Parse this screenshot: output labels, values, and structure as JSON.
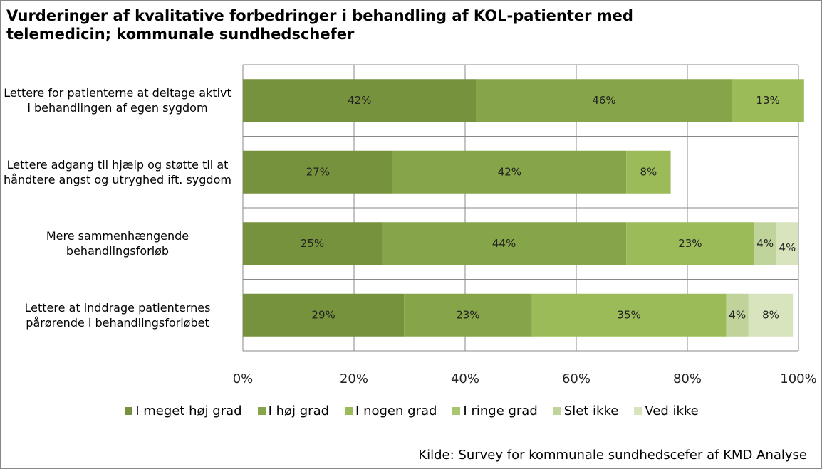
{
  "chart_data": {
    "type": "stacked_barh",
    "title": "Vurderinger af kvalitative forbedringer i behandling af KOL-patienter med telemedicin; kommunale sundhedschefer",
    "categories": [
      "Lettere for patienterne at deltage aktivt i behandlingen af egen sygdom",
      "Lettere adgang til hjælp og støtte til at håndtere angst og utryghed ift. sygdom",
      "Mere sammenhængende behandlingsforløb",
      "Lettere at inddrage patienternes pårørende i behandlingsforløbet"
    ],
    "series": [
      {
        "name": "I meget høj grad",
        "color": "#76923c",
        "values": [
          42,
          27,
          25,
          29
        ],
        "value_labels": [
          "42%",
          "27%",
          "25%",
          "29%"
        ]
      },
      {
        "name": "I høj grad",
        "color": "#86a548",
        "values": [
          46,
          42,
          44,
          23
        ],
        "value_labels": [
          "46%",
          "42%",
          "44%",
          "23%"
        ]
      },
      {
        "name": "I nogen grad",
        "color": "#9bbb59",
        "values": [
          13,
          8,
          23,
          35
        ],
        "value_labels": [
          "13%",
          "8%",
          "23%",
          "35%"
        ]
      },
      {
        "name": "I ringe grad",
        "color": "#a9c56f",
        "values": [
          null,
          null,
          null,
          null
        ],
        "value_labels": [
          null,
          null,
          null,
          null
        ]
      },
      {
        "name": "Slet ikke",
        "color": "#bfd39a",
        "values": [
          null,
          null,
          4,
          4
        ],
        "value_labels": [
          null,
          null,
          "4%",
          "4%"
        ]
      },
      {
        "name": "Ved ikke",
        "color": "#d7e4bd",
        "values": [
          null,
          null,
          4,
          8
        ],
        "value_labels": [
          null,
          null,
          "4%",
          "8%"
        ]
      }
    ],
    "xlim": [
      0,
      100
    ],
    "xticks": [
      {
        "value": 0,
        "label": "0%"
      },
      {
        "value": 20,
        "label": "20%"
      },
      {
        "value": 40,
        "label": "40%"
      },
      {
        "value": 60,
        "label": "60%"
      },
      {
        "value": 80,
        "label": "80%"
      },
      {
        "value": 100,
        "label": "100%"
      }
    ],
    "grid": true,
    "legend": "bottom",
    "source": "Kilde: Survey for kommunale sundhedscefer af KMD Analyse"
  }
}
